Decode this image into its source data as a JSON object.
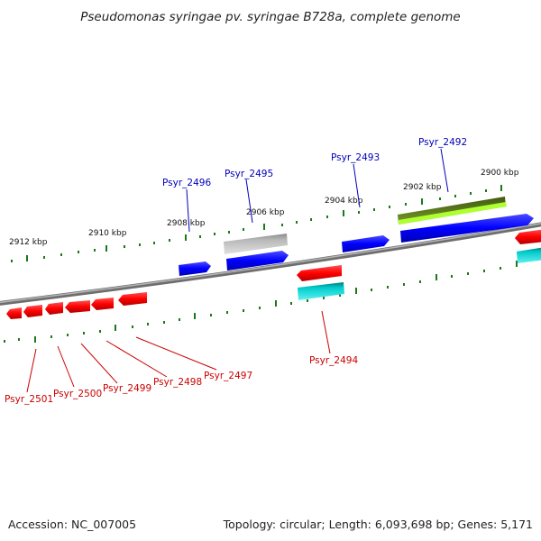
{
  "title": "Pseudomonas syringae pv. syringae B728a, complete genome",
  "footer": {
    "accession": "Accession: NC_007005",
    "summary": "Topology: circular; Length: 6,093,698 bp; Genes: 5,171"
  },
  "colors": {
    "backbone": "#808080",
    "forward_label": "#0000bb",
    "reverse_label": "#cc0000",
    "tick": "#1a7a1a",
    "gene_blue": "#0000ff",
    "gene_red": "#ff0000",
    "gene_cyan": "#00cccc",
    "gene_gray": "#b0b0b0",
    "gene_olive": "#6b8e23",
    "gene_lime": "#adff2f"
  },
  "ticks": [
    "2912 kbp",
    "2910 kbp",
    "2908 kbp",
    "2906 kbp",
    "2904 kbp",
    "2902 kbp",
    "2900 kbp"
  ],
  "gene_labels": {
    "forward": [
      "Psyr_2496",
      "Psyr_2495",
      "Psyr_2493",
      "Psyr_2492"
    ],
    "reverse": [
      "Psyr_2501",
      "Psyr_2500",
      "Psyr_2499",
      "Psyr_2498",
      "Psyr_2497",
      "Psyr_2494"
    ]
  }
}
